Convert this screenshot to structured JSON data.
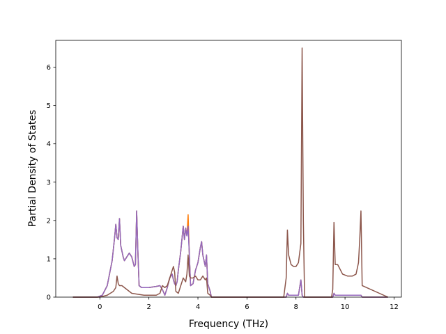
{
  "chart_data": {
    "type": "line",
    "title": "",
    "xlabel": "Frequency (THz)",
    "ylabel": "Partial Density of States",
    "xlim": [
      -1.8,
      12.3
    ],
    "ylim": [
      0,
      6.7
    ],
    "xticks": [
      0,
      2,
      4,
      6,
      8,
      10,
      12
    ],
    "yticks": [
      0,
      1,
      2,
      3,
      4,
      5,
      6
    ],
    "grid": false,
    "legend": "none",
    "series": [
      {
        "color": "#1f77b4",
        "x": [
          -1.1,
          -0.1,
          0.1,
          0.3,
          0.5,
          0.6,
          0.65,
          0.7,
          0.75,
          0.8,
          0.85,
          0.9,
          0.95,
          1.0,
          1.1,
          1.2,
          1.3,
          1.4,
          1.45,
          1.5,
          1.55,
          1.6,
          1.7,
          2.0,
          2.3,
          2.45,
          2.55,
          2.65,
          2.75,
          2.85,
          2.95,
          3.0,
          3.05,
          3.1,
          3.15,
          3.2,
          3.3,
          3.4,
          3.45,
          3.5,
          3.55,
          3.6,
          3.65,
          3.7,
          3.8,
          3.9,
          4.0,
          4.1,
          4.15,
          4.2,
          4.3,
          4.35,
          4.4,
          4.5,
          4.55,
          7.6,
          7.65,
          7.7,
          7.8,
          8.0,
          8.1,
          8.2,
          8.25,
          8.3,
          8.35,
          9.5,
          9.55,
          9.6,
          9.7,
          10.0,
          10.4,
          10.5,
          10.55,
          10.6,
          10.65,
          10.7,
          11.75
        ],
        "y": [
          0,
          0,
          0.05,
          0.3,
          0.95,
          1.55,
          1.9,
          1.55,
          1.5,
          2.05,
          1.35,
          1.2,
          1.05,
          0.95,
          1.05,
          1.15,
          1.05,
          0.8,
          0.85,
          2.25,
          1.2,
          0.3,
          0.25,
          0.25,
          0.28,
          0.3,
          0.2,
          0.05,
          0.25,
          0.5,
          0.6,
          0.45,
          0.35,
          0.3,
          0.4,
          0.7,
          1.2,
          1.85,
          1.5,
          1.8,
          1.6,
          1.95,
          1.1,
          0.3,
          0.35,
          0.7,
          0.9,
          1.3,
          1.45,
          1.1,
          0.8,
          1.1,
          0.35,
          0.15,
          0,
          0,
          0.1,
          0.05,
          0.05,
          0.05,
          0.05,
          0.45,
          0.05,
          0,
          0,
          0,
          0.1,
          0.05,
          0.05,
          0.05,
          0.05,
          0.05,
          0.05,
          0.05,
          0.05,
          0,
          0
        ]
      },
      {
        "color": "#ff7f0e",
        "x": [
          -1.1,
          -0.1,
          0.1,
          0.3,
          0.5,
          0.6,
          0.65,
          0.7,
          0.75,
          0.8,
          0.85,
          0.9,
          0.95,
          1.0,
          1.1,
          1.2,
          1.3,
          1.4,
          1.45,
          1.5,
          1.55,
          1.6,
          1.7,
          2.0,
          2.3,
          2.45,
          2.55,
          2.65,
          2.75,
          2.85,
          2.95,
          3.0,
          3.05,
          3.1,
          3.15,
          3.2,
          3.3,
          3.4,
          3.45,
          3.5,
          3.55,
          3.6,
          3.65,
          3.7,
          3.8,
          3.9,
          4.0,
          4.1,
          4.15,
          4.2,
          4.3,
          4.35,
          4.4,
          4.5,
          4.55,
          7.6,
          7.65,
          7.7,
          7.8,
          8.0,
          8.1,
          8.2,
          8.25,
          8.3,
          8.35,
          9.5,
          9.55,
          9.6,
          9.7,
          10.0,
          10.4,
          10.5,
          10.55,
          10.6,
          10.65,
          10.7,
          11.75
        ],
        "y": [
          0,
          0,
          0.05,
          0.3,
          0.95,
          1.55,
          1.9,
          1.55,
          1.5,
          2.05,
          1.35,
          1.2,
          1.05,
          0.95,
          1.05,
          1.15,
          1.05,
          0.8,
          0.85,
          2.25,
          1.2,
          0.3,
          0.25,
          0.25,
          0.28,
          0.3,
          0.2,
          0.05,
          0.25,
          0.5,
          0.6,
          0.45,
          0.35,
          0.3,
          0.4,
          0.7,
          1.2,
          1.85,
          1.5,
          1.8,
          1.6,
          2.15,
          1.1,
          0.3,
          0.35,
          0.7,
          0.9,
          1.3,
          1.45,
          1.1,
          0.8,
          1.1,
          0.35,
          0.15,
          0,
          0,
          0.1,
          0.05,
          0.05,
          0.05,
          0.05,
          0.45,
          0.05,
          0,
          0,
          0,
          0.1,
          0.05,
          0.05,
          0.05,
          0.05,
          0.05,
          0.05,
          0.05,
          0.05,
          0,
          0
        ]
      },
      {
        "color": "#9467bd",
        "x": [
          -1.1,
          -0.1,
          0.1,
          0.3,
          0.5,
          0.6,
          0.65,
          0.7,
          0.75,
          0.8,
          0.85,
          0.9,
          0.95,
          1.0,
          1.1,
          1.2,
          1.3,
          1.4,
          1.45,
          1.5,
          1.55,
          1.6,
          1.7,
          2.0,
          2.3,
          2.45,
          2.55,
          2.65,
          2.75,
          2.85,
          2.95,
          3.0,
          3.05,
          3.1,
          3.15,
          3.2,
          3.3,
          3.4,
          3.45,
          3.5,
          3.55,
          3.6,
          3.65,
          3.7,
          3.8,
          3.9,
          4.0,
          4.1,
          4.15,
          4.2,
          4.3,
          4.35,
          4.4,
          4.5,
          4.55,
          7.6,
          7.65,
          7.7,
          7.8,
          8.0,
          8.1,
          8.2,
          8.25,
          8.3,
          8.35,
          9.5,
          9.55,
          9.6,
          9.7,
          10.0,
          10.4,
          10.5,
          10.55,
          10.6,
          10.65,
          10.7,
          11.75
        ],
        "y": [
          0,
          0,
          0.05,
          0.3,
          0.95,
          1.55,
          1.9,
          1.55,
          1.5,
          2.05,
          1.35,
          1.2,
          1.05,
          0.95,
          1.05,
          1.15,
          1.05,
          0.8,
          0.85,
          2.25,
          1.2,
          0.3,
          0.25,
          0.25,
          0.28,
          0.3,
          0.2,
          0.05,
          0.25,
          0.5,
          0.6,
          0.45,
          0.35,
          0.3,
          0.4,
          0.7,
          1.2,
          1.85,
          1.5,
          1.8,
          1.6,
          1.85,
          1.1,
          0.3,
          0.35,
          0.7,
          0.9,
          1.3,
          1.45,
          1.1,
          0.8,
          1.1,
          0.35,
          0.15,
          0,
          0,
          0.1,
          0.05,
          0.05,
          0.05,
          0.05,
          0.45,
          0.05,
          0,
          0,
          0,
          0.1,
          0.05,
          0.05,
          0.05,
          0.05,
          0.05,
          0.05,
          0.05,
          0.05,
          0,
          0
        ]
      },
      {
        "color": "#8c564b",
        "x": [
          -1.1,
          0.0,
          0.3,
          0.55,
          0.65,
          0.7,
          0.75,
          0.8,
          0.9,
          1.0,
          1.1,
          1.2,
          1.3,
          1.5,
          1.8,
          2.0,
          2.3,
          2.45,
          2.55,
          2.65,
          2.75,
          2.85,
          2.95,
          3.0,
          3.05,
          3.1,
          3.2,
          3.3,
          3.4,
          3.5,
          3.55,
          3.6,
          3.65,
          3.7,
          3.8,
          3.9,
          4.0,
          4.1,
          4.15,
          4.2,
          4.3,
          4.35,
          4.4,
          4.5,
          4.55,
          7.5,
          7.6,
          7.65,
          7.7,
          7.8,
          7.9,
          8.0,
          8.1,
          8.2,
          8.25,
          8.3,
          8.35,
          9.45,
          9.5,
          9.55,
          9.6,
          9.7,
          9.9,
          10.1,
          10.3,
          10.45,
          10.55,
          10.6,
          10.65,
          10.7,
          11.75
        ],
        "y": [
          0,
          0,
          0.05,
          0.15,
          0.25,
          0.55,
          0.35,
          0.3,
          0.3,
          0.25,
          0.2,
          0.15,
          0.1,
          0.08,
          0.05,
          0.05,
          0.05,
          0.1,
          0.3,
          0.25,
          0.3,
          0.5,
          0.7,
          0.8,
          0.65,
          0.15,
          0.1,
          0.3,
          0.5,
          0.4,
          0.6,
          1.1,
          0.55,
          0.5,
          0.5,
          0.55,
          0.45,
          0.45,
          0.5,
          0.55,
          0.45,
          0.5,
          0.1,
          0.05,
          0,
          0,
          0.5,
          1.75,
          1.1,
          0.85,
          0.8,
          0.8,
          0.9,
          1.4,
          6.5,
          2.0,
          0,
          0,
          0.2,
          1.95,
          0.85,
          0.85,
          0.6,
          0.55,
          0.55,
          0.6,
          0.9,
          1.5,
          2.25,
          0.3,
          0
        ]
      }
    ]
  }
}
